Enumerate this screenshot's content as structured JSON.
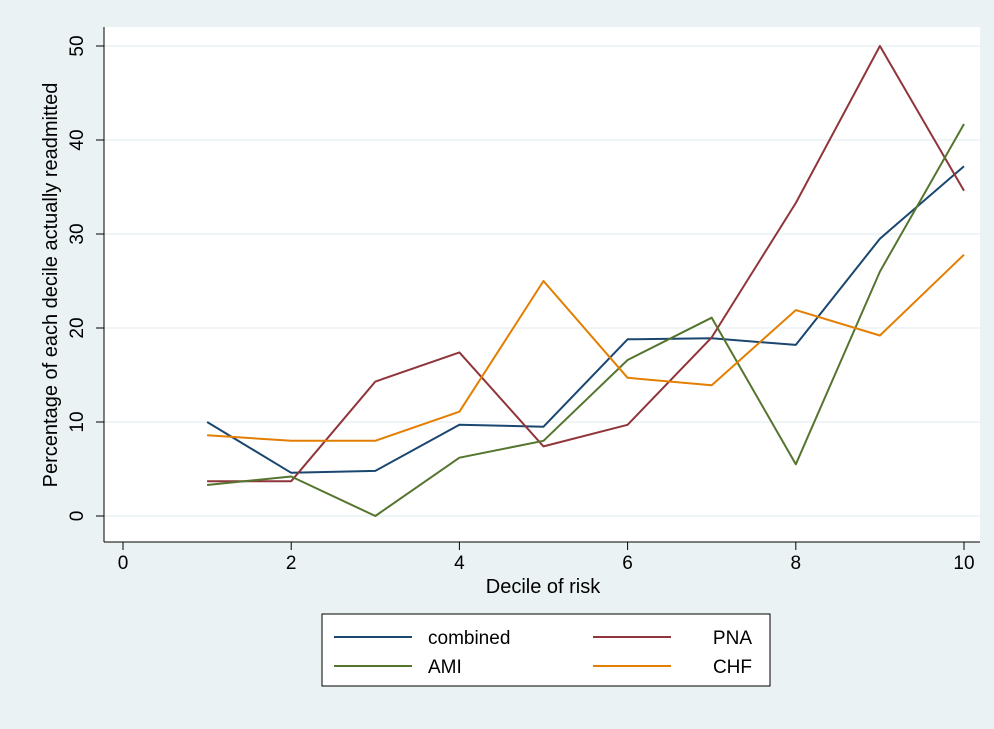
{
  "chart_data": {
    "type": "line",
    "xlabel": "Decile of risk",
    "ylabel": "Percentage of each decile actually readmitted",
    "xlim": [
      0,
      10
    ],
    "ylim": [
      0,
      50
    ],
    "xticks": [
      0,
      2,
      4,
      6,
      8,
      10
    ],
    "yticks": [
      0,
      10,
      20,
      30,
      40,
      50
    ],
    "grid": true,
    "legend_position": "bottom",
    "x": [
      1,
      2,
      3,
      4,
      5,
      6,
      7,
      8,
      9,
      10
    ],
    "series": [
      {
        "name": "combined",
        "color": "#1a476f",
        "values": [
          10.0,
          4.6,
          4.8,
          9.7,
          9.5,
          18.8,
          18.9,
          18.2,
          29.5,
          37.2
        ]
      },
      {
        "name": "PNA",
        "color": "#90353b",
        "values": [
          3.7,
          3.7,
          14.3,
          17.4,
          7.4,
          9.7,
          19.0,
          33.3,
          50.0,
          34.6
        ]
      },
      {
        "name": "AMI",
        "color": "#55752f",
        "values": [
          3.3,
          4.2,
          0.0,
          6.2,
          8.0,
          16.6,
          21.1,
          5.5,
          26.0,
          41.7
        ]
      },
      {
        "name": "CHF",
        "color": "#e37e00",
        "values": [
          8.6,
          8.0,
          8.0,
          11.1,
          25.0,
          14.7,
          13.9,
          21.9,
          19.2,
          27.8
        ]
      }
    ]
  }
}
